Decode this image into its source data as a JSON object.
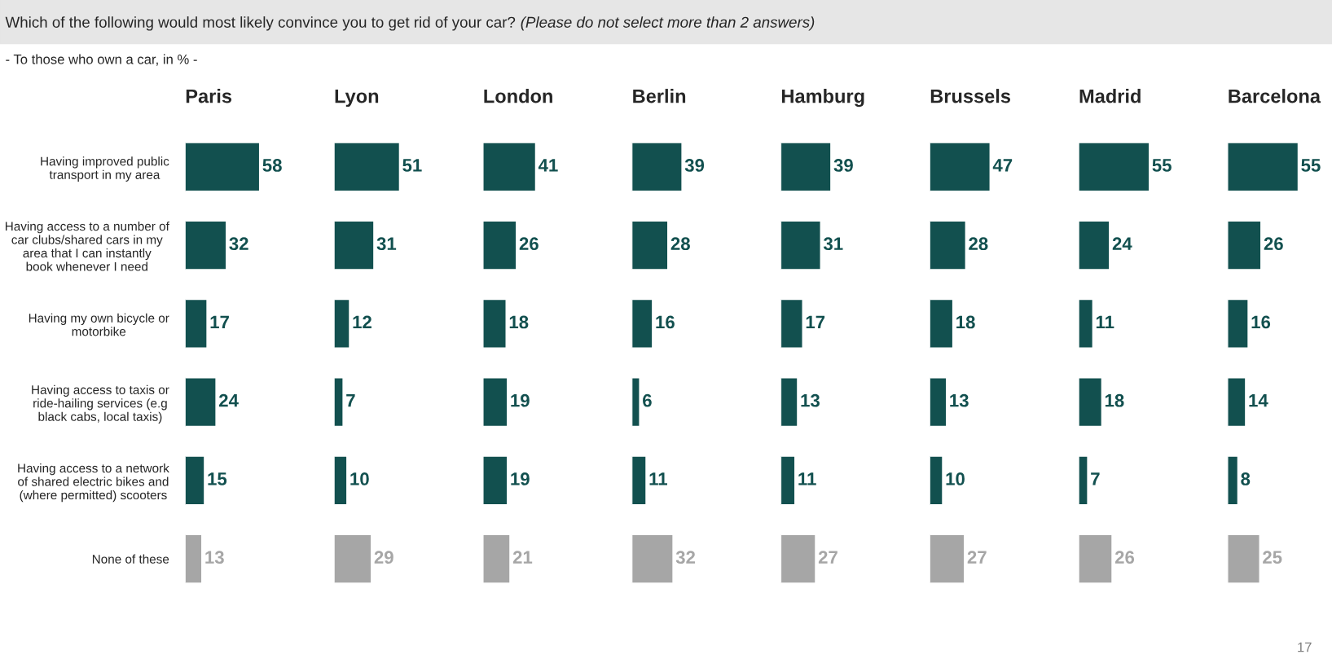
{
  "chart_data": [
    {
      "type": "bar",
      "orientation": "horizontal",
      "title": "Paris",
      "categories": [
        "Having improved public transport in my area",
        "Having access to a number of car clubs/shared cars in my area that I can instantly book whenever I need",
        "Having my own bicycle or motorbike",
        "Having access to taxis or ride-hailing services (e.g black cabs, local taxis)",
        "Having access to a network of shared electric bikes and (where permitted) scooters",
        "None of these"
      ],
      "values": [
        58,
        32,
        17,
        24,
        15,
        13
      ],
      "colors": [
        "#12504f",
        "#12504f",
        "#12504f",
        "#12504f",
        "#12504f",
        "#a6a6a6"
      ],
      "data_labels": true,
      "tick_labels": "y",
      "annotations": [
        "Which of the following would most likely convince you to get rid of your car?",
        "(Please do not select more than 2 answers)",
        "- To those who own a car, in % -",
        "17"
      ]
    },
    {
      "type": "bar",
      "orientation": "horizontal",
      "title": "Lyon",
      "categories": [
        null,
        null,
        null,
        null,
        null,
        null
      ],
      "values": [
        51,
        31,
        12,
        7,
        10,
        29
      ],
      "colors": [
        "#12504f",
        "#12504f",
        "#12504f",
        "#12504f",
        "#12504f",
        "#a6a6a6"
      ],
      "data_labels": true,
      "tick_labels": false
    },
    {
      "type": "bar",
      "orientation": "horizontal",
      "title": "London",
      "categories": [
        null,
        null,
        null,
        null,
        null,
        null
      ],
      "values": [
        41,
        26,
        18,
        19,
        19,
        21
      ],
      "colors": [
        "#12504f",
        "#12504f",
        "#12504f",
        "#12504f",
        "#12504f",
        "#a6a6a6"
      ],
      "data_labels": true,
      "tick_labels": false
    },
    {
      "type": "bar",
      "orientation": "horizontal",
      "title": "Berlin",
      "categories": [
        null,
        null,
        null,
        null,
        null,
        null
      ],
      "values": [
        39,
        28,
        16,
        6,
        11,
        32
      ],
      "colors": [
        "#12504f",
        "#12504f",
        "#12504f",
        "#12504f",
        "#12504f",
        "#a6a6a6"
      ],
      "data_labels": true,
      "tick_labels": false
    },
    {
      "type": "bar",
      "orientation": "horizontal",
      "title": "Hamburg",
      "categories": [
        null,
        null,
        null,
        null,
        null,
        null
      ],
      "values": [
        39,
        31,
        17,
        13,
        11,
        27
      ],
      "colors": [
        "#12504f",
        "#12504f",
        "#12504f",
        "#12504f",
        "#12504f",
        "#a6a6a6"
      ],
      "data_labels": true,
      "tick_labels": false
    },
    {
      "type": "bar",
      "orientation": "horizontal",
      "title": "Brussels",
      "categories": [
        null,
        null,
        null,
        null,
        null,
        null
      ],
      "values": [
        47,
        28,
        18,
        13,
        10,
        27
      ],
      "colors": [
        "#12504f",
        "#12504f",
        "#12504f",
        "#12504f",
        "#12504f",
        "#a6a6a6"
      ],
      "data_labels": true,
      "tick_labels": false
    },
    {
      "type": "bar",
      "orientation": "horizontal",
      "title": "Madrid",
      "categories": [
        null,
        null,
        null,
        null,
        null,
        null
      ],
      "values": [
        55,
        24,
        11,
        18,
        7,
        26
      ],
      "colors": [
        "#12504f",
        "#12504f",
        "#12504f",
        "#12504f",
        "#12504f",
        "#a6a6a6"
      ],
      "data_labels": true,
      "tick_labels": false
    },
    {
      "type": "bar",
      "orientation": "horizontal",
      "title": "Barcelona",
      "categories": [
        null,
        null,
        null,
        null,
        null,
        null
      ],
      "values": [
        55,
        26,
        16,
        14,
        8,
        25
      ],
      "colors": [
        "#12504f",
        "#12504f",
        "#12504f",
        "#12504f",
        "#12504f",
        "#a6a6a6"
      ],
      "data_labels": true,
      "tick_labels": false
    }
  ]
}
